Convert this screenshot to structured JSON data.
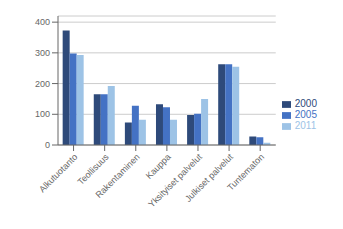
{
  "chart_data": {
    "type": "bar",
    "categories": [
      "Alkutuotanto",
      "Teollisuus",
      "Rakentaminen",
      "Kauppa",
      "Yksityiset palvelut",
      "Julkiset palvelut",
      "Tuntematon"
    ],
    "series": [
      {
        "name": "2000",
        "color": "#2E4A7A",
        "values": [
          373,
          165,
          73,
          133,
          98,
          263,
          28
        ]
      },
      {
        "name": "2005",
        "color": "#4472C4",
        "values": [
          298,
          165,
          128,
          123,
          102,
          263,
          25
        ]
      },
      {
        "name": "2011",
        "color": "#9DC3E6",
        "values": [
          293,
          192,
          82,
          82,
          150,
          255,
          7
        ]
      }
    ],
    "ylim": [
      0,
      420
    ],
    "yticks": [
      0,
      100,
      200,
      300,
      400
    ],
    "grid": true,
    "legend": "right"
  }
}
